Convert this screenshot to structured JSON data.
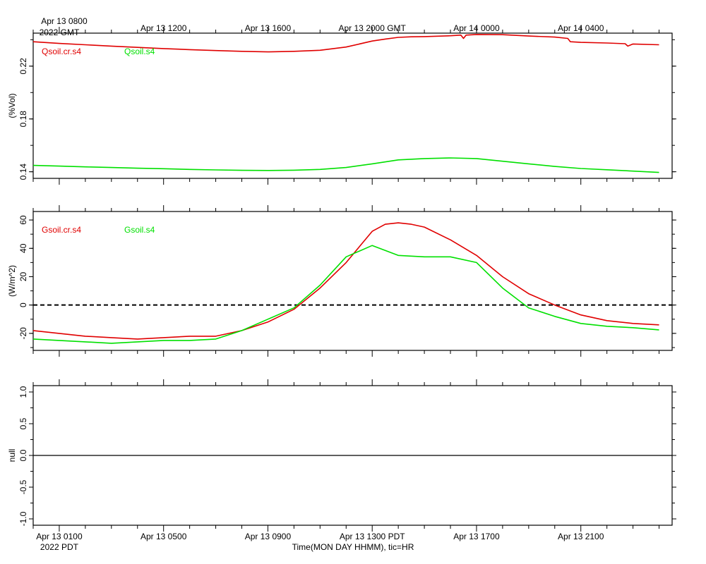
{
  "chart_data": [
    {
      "type": "line",
      "ylabel": "(%Vol)",
      "ylim": [
        0.135,
        0.245
      ],
      "yticks": [
        0.14,
        0.18,
        0.22
      ],
      "ytick_labels": [
        "0.14",
        "0.18",
        "0.22"
      ],
      "legend_placement": "top-left",
      "top_axis": {
        "ticks": [
          {
            "hour": 0,
            "label": "Apr 13 0800",
            "label2": "2022 GMT"
          },
          {
            "hour": 4,
            "label": "Apr 13 1200"
          },
          {
            "hour": 8,
            "label": "Apr 13 1600"
          },
          {
            "hour": 12,
            "label": "Apr 13 2000 GMT"
          },
          {
            "hour": 16,
            "label": "Apr 14 0000"
          },
          {
            "hour": 20,
            "label": "Apr 14 0400"
          }
        ]
      },
      "series": [
        {
          "name": "Qsoil.cr.s4",
          "color": "#e00000",
          "x": [
            -1,
            0,
            1,
            2,
            3,
            4,
            5,
            6,
            7,
            8,
            9,
            10,
            11,
            12,
            12.5,
            13,
            13.5,
            14,
            15,
            15.4,
            15.5,
            15.6,
            16,
            17,
            18,
            19,
            19.5,
            19.6,
            20,
            21,
            21.7,
            21.8,
            22,
            23
          ],
          "y": [
            0.2385,
            0.2372,
            0.2362,
            0.2352,
            0.2342,
            0.2333,
            0.2325,
            0.2318,
            0.2312,
            0.2308,
            0.2312,
            0.232,
            0.2345,
            0.239,
            0.2405,
            0.2418,
            0.2422,
            0.2424,
            0.243,
            0.2435,
            0.241,
            0.2435,
            0.244,
            0.2438,
            0.2428,
            0.242,
            0.241,
            0.2385,
            0.238,
            0.2375,
            0.237,
            0.2352,
            0.2368,
            0.2362
          ]
        },
        {
          "name": "Qsoil.s4",
          "color": "#00e000",
          "x": [
            -1,
            0,
            1,
            2,
            3,
            4,
            5,
            6,
            7,
            8,
            9,
            10,
            11,
            12,
            13,
            14,
            15,
            16,
            17,
            18,
            19,
            20,
            21,
            22,
            23
          ],
          "y": [
            0.1448,
            0.1443,
            0.1437,
            0.1432,
            0.1427,
            0.1423,
            0.1418,
            0.1414,
            0.1411,
            0.141,
            0.1412,
            0.1418,
            0.1432,
            0.146,
            0.149,
            0.15,
            0.1505,
            0.15,
            0.148,
            0.146,
            0.144,
            0.1425,
            0.1415,
            0.1405,
            0.1395
          ]
        }
      ]
    },
    {
      "type": "line",
      "ylabel": "(W/m^2)",
      "ylim": [
        -32,
        66
      ],
      "yticks": [
        -20,
        0,
        20,
        40,
        60
      ],
      "ytick_labels": [
        "-20",
        "0",
        "20",
        "40",
        "60"
      ],
      "zero_line": "dashed",
      "legend_placement": "top-left",
      "series": [
        {
          "name": "Gsoil.cr.s4",
          "color": "#e00000",
          "x": [
            -1,
            0,
            1,
            2,
            3,
            4,
            5,
            6,
            7,
            8,
            9,
            10,
            11,
            12,
            12.5,
            13,
            13.5,
            14,
            15,
            16,
            17,
            18,
            19,
            20,
            21,
            22,
            23
          ],
          "y": [
            -18,
            -20,
            -22,
            -23,
            -24,
            -23,
            -22,
            -22,
            -18,
            -12,
            -3,
            12,
            30,
            52,
            57,
            58,
            57,
            55,
            46,
            35,
            20,
            8,
            0,
            -7,
            -11,
            -13,
            -14
          ]
        },
        {
          "name": "Gsoil.s4",
          "color": "#00e000",
          "x": [
            -1,
            0,
            1,
            2,
            3,
            4,
            5,
            6,
            7,
            8,
            9,
            10,
            11,
            12,
            13,
            14,
            15,
            16,
            17,
            18,
            19,
            20,
            21,
            22,
            23
          ],
          "y": [
            -24,
            -25,
            -26,
            -27,
            -26,
            -25,
            -25,
            -24,
            -18,
            -10,
            -2,
            14,
            34,
            42,
            35,
            34,
            34,
            30,
            12,
            -2,
            -8,
            -13,
            -15,
            -16,
            -17.5
          ]
        }
      ]
    },
    {
      "type": "line",
      "ylabel": "null",
      "ylim": [
        -1.1,
        1.1
      ],
      "yticks": [
        -1.0,
        -0.5,
        0.0,
        0.5,
        1.0
      ],
      "ytick_labels": [
        "-1.0",
        "-0.5",
        "0.0",
        "0.5",
        "1.0"
      ],
      "zero_line": "solid",
      "series": []
    }
  ],
  "x_axis": {
    "xlim_hours": [
      -1,
      23.5
    ],
    "xlabel": "Time(MON DAY HHMM), tic=HR",
    "bottom_ticks": [
      {
        "hour": 0,
        "label": "Apr 13 0100",
        "label2": "2022 PDT"
      },
      {
        "hour": 4,
        "label": "Apr 13 0500"
      },
      {
        "hour": 8,
        "label": "Apr 13 0900"
      },
      {
        "hour": 12,
        "label": "Apr 13 1300 PDT"
      },
      {
        "hour": 16,
        "label": "Apr 13 1700"
      },
      {
        "hour": 20,
        "label": "Apr 13 2100"
      }
    ]
  }
}
